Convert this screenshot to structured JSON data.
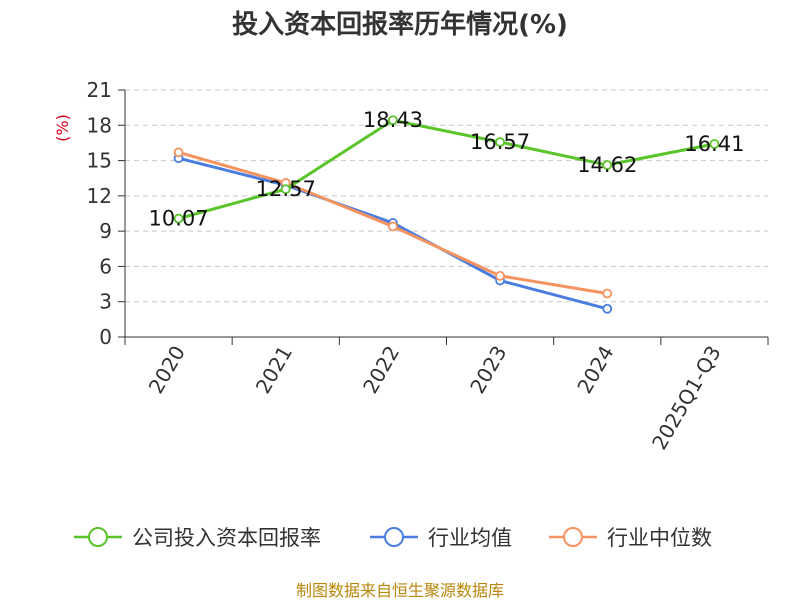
{
  "chart_data": {
    "type": "line",
    "title": "投入资本回报率历年情况(%)",
    "ylabel": "(%)",
    "xlabel": "",
    "categories": [
      "2020",
      "2021",
      "2022",
      "2023",
      "2024",
      "2025Q1-Q3"
    ],
    "ylim": [
      0,
      21
    ],
    "yticks": [
      0,
      3,
      6,
      9,
      12,
      15,
      18,
      21
    ],
    "grid": true,
    "legend_position": "bottom",
    "series": [
      {
        "name": "公司投入资本回报率",
        "color": "#5ac42b",
        "values": [
          10.07,
          12.57,
          18.43,
          16.57,
          14.62,
          16.41
        ],
        "labels": [
          "10.07",
          "12.57",
          "18.43",
          "16.57",
          "14.62",
          "16.41"
        ]
      },
      {
        "name": "行业均值",
        "color": "#4a7de0",
        "values": [
          15.2,
          12.9,
          9.7,
          4.8,
          2.4,
          null
        ]
      },
      {
        "name": "行业中位数",
        "color": "#f59360",
        "values": [
          15.7,
          13.1,
          9.4,
          5.2,
          3.7,
          null
        ]
      }
    ]
  },
  "source": "制图数据来自恒生聚源数据库"
}
